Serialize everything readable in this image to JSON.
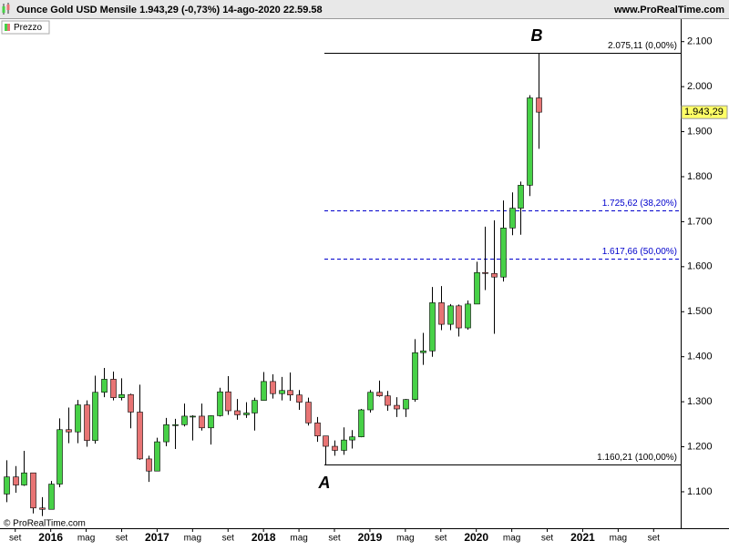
{
  "chart_data": {
    "type": "candlestick",
    "title": "Ounce Gold USD Mensile 1.943,29 (-0,73%) 14-ago-2020 22.59.58",
    "source": "www.ProRealTime.com",
    "copyright": "© ProRealTime.com",
    "legend": "Prezzo",
    "categories": [
      null,
      "set",
      null,
      null,
      null,
      "2016",
      null,
      null,
      null,
      "mag",
      null,
      null,
      null,
      "set",
      null,
      null,
      null,
      "2017",
      null,
      null,
      null,
      "mag",
      null,
      null,
      null,
      "set",
      null,
      null,
      null,
      "2018",
      null,
      null,
      null,
      "mag",
      null,
      null,
      null,
      "set",
      null,
      null,
      null,
      "2019",
      null,
      null,
      null,
      "mag",
      null,
      null,
      null,
      "set",
      null,
      null,
      null,
      "2020",
      null,
      null,
      null,
      "mag",
      null,
      null,
      null,
      "set",
      null,
      null,
      null,
      "2021",
      null,
      null,
      null,
      "mag",
      null,
      null,
      null,
      "set",
      null,
      null,
      null
    ],
    "bold_labels": [
      "2016",
      "2017",
      "2018",
      "2019",
      "2020",
      "2021"
    ],
    "open": [
      1095,
      1133,
      1115,
      1142,
      1064,
      1061,
      1117,
      1238,
      1233,
      1293,
      1214,
      1321,
      1350,
      1309,
      1316,
      1277,
      1173,
      1146,
      1211,
      1249,
      1249,
      1268,
      1268,
      1242,
      1269,
      1322,
      1280,
      1271,
      1275,
      1303,
      1345,
      1318,
      1325,
      1315,
      1299,
      1253,
      1224,
      1201,
      1192,
      1215,
      1222,
      1282,
      1321,
      1313,
      1292,
      1284,
      1305,
      1409,
      1413,
      1520,
      1472,
      1513,
      1464,
      1517,
      1587,
      1585,
      1577,
      1686,
      1730,
      1781,
      1975,
      null,
      null,
      null,
      null,
      null,
      null,
      null,
      null,
      null,
      null,
      null,
      null,
      null,
      null,
      null,
      null
    ],
    "high": [
      1170,
      1157,
      1191,
      1142,
      1088,
      1124,
      1263,
      1287,
      1304,
      1303,
      1358,
      1375,
      1367,
      1352,
      1318,
      1338,
      1180,
      1220,
      1264,
      1262,
      1296,
      1270,
      1296,
      1270,
      1331,
      1357,
      1306,
      1299,
      1309,
      1366,
      1361,
      1355,
      1365,
      1326,
      1309,
      1266,
      1224,
      1214,
      1243,
      1237,
      1284,
      1326,
      1347,
      1324,
      1310,
      1306,
      1439,
      1453,
      1555,
      1557,
      1517,
      1516,
      1525,
      1611,
      1689,
      1703,
      1747,
      1765,
      1789,
      1981,
      2075.11,
      null,
      null,
      null,
      null,
      null,
      null,
      null,
      null,
      null,
      null,
      null,
      null,
      null,
      null,
      null,
      null
    ],
    "low": [
      1077,
      1098,
      1113,
      1052,
      1046,
      1062,
      1110,
      1208,
      1208,
      1200,
      1207,
      1310,
      1303,
      1303,
      1241,
      1171,
      1122,
      1146,
      1201,
      1195,
      1245,
      1214,
      1236,
      1205,
      1267,
      1271,
      1260,
      1264,
      1236,
      1303,
      1307,
      1303,
      1302,
      1282,
      1247,
      1211,
      1160.21,
      1180,
      1182,
      1196,
      1221,
      1276,
      1311,
      1280,
      1266,
      1266,
      1300,
      1382,
      1400,
      1459,
      1459,
      1445,
      1460,
      1517,
      1548,
      1451,
      1567,
      1670,
      1671,
      1757,
      1862,
      null,
      null,
      null,
      null,
      null,
      null,
      null,
      null,
      null,
      null,
      null,
      null,
      null,
      null,
      null,
      null
    ],
    "close": [
      1133,
      1115,
      1142,
      1064,
      1061,
      1117,
      1238,
      1233,
      1293,
      1214,
      1321,
      1350,
      1309,
      1316,
      1277,
      1173,
      1146,
      1211,
      1249,
      1249,
      1268,
      1268,
      1242,
      1269,
      1322,
      1280,
      1271,
      1275,
      1303,
      1345,
      1318,
      1325,
      1315,
      1299,
      1253,
      1224,
      1201,
      1192,
      1215,
      1222,
      1282,
      1321,
      1313,
      1292,
      1284,
      1305,
      1409,
      1413,
      1520,
      1472,
      1513,
      1464,
      1517,
      1587,
      1585,
      1577,
      1686,
      1730,
      1781,
      1975,
      1943.29,
      null,
      null,
      null,
      null,
      null,
      null,
      null,
      null,
      null,
      null,
      null,
      null,
      null,
      null,
      null,
      null
    ],
    "up_color": "#47d147",
    "down_color": "#e87474",
    "ylim": [
      1019,
      2150
    ],
    "yticks": [
      {
        "value": 1100,
        "label": "1.100"
      },
      {
        "value": 1200,
        "label": "1.200"
      },
      {
        "value": 1300,
        "label": "1.300"
      },
      {
        "value": 1400,
        "label": "1.400"
      },
      {
        "value": 1500,
        "label": "1.500"
      },
      {
        "value": 1600,
        "label": "1.600"
      },
      {
        "value": 1700,
        "label": "1.700"
      },
      {
        "value": 1800,
        "label": "1.800"
      },
      {
        "value": 1900,
        "label": "1.900"
      },
      {
        "value": 2000,
        "label": "2.000"
      },
      {
        "value": 2100,
        "label": "2.100"
      }
    ],
    "last_price": {
      "value": 1943.29,
      "label": "1.943,29"
    },
    "levels": [
      {
        "value": 2075.11,
        "label": "2.075,11 (0,00%)",
        "style": "solid",
        "color": "#000000"
      },
      {
        "value": 1725.62,
        "label": "1.725,62 (38,20%)",
        "style": "dashed",
        "color": "#0000cc"
      },
      {
        "value": 1617.66,
        "label": "1.617,66 (50,00%)",
        "style": "dashed",
        "color": "#0000cc"
      },
      {
        "value": 1160.21,
        "label": "1.160,21 (100,00%)",
        "style": "solid",
        "color": "#000000"
      }
    ],
    "annotations": [
      {
        "text": "A"
      },
      {
        "text": "B"
      }
    ]
  }
}
